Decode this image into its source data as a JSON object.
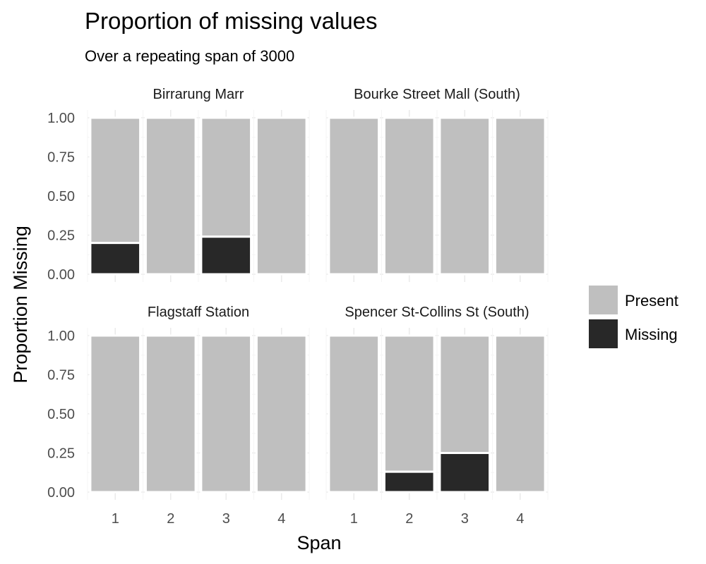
{
  "chart_data": {
    "type": "bar",
    "title": "Proportion of missing values",
    "subtitle": "Over a repeating span of 3000",
    "xlabel": "Span",
    "ylabel": "Proportion Missing",
    "categories": [
      "1",
      "2",
      "3",
      "4"
    ],
    "yticks": [
      "0.00",
      "0.25",
      "0.50",
      "0.75",
      "1.00"
    ],
    "ylim": [
      0,
      1
    ],
    "stacked": true,
    "grid": true,
    "legend_position": "right",
    "legend": [
      {
        "name": "Present",
        "color": "#bfbfbf"
      },
      {
        "name": "Missing",
        "color": "#282828"
      }
    ],
    "facets": [
      {
        "label": "Birrarung Marr",
        "missing": [
          0.2,
          0.0,
          0.24,
          0.0
        ]
      },
      {
        "label": "Bourke Street Mall (South)",
        "missing": [
          0.0,
          0.0,
          0.0,
          0.0
        ]
      },
      {
        "label": "Flagstaff Station",
        "missing": [
          0.0,
          0.0,
          0.0,
          0.0
        ]
      },
      {
        "label": "Spencer St-Collins St (South)",
        "missing": [
          0.0,
          0.13,
          0.25,
          0.0
        ]
      }
    ]
  }
}
